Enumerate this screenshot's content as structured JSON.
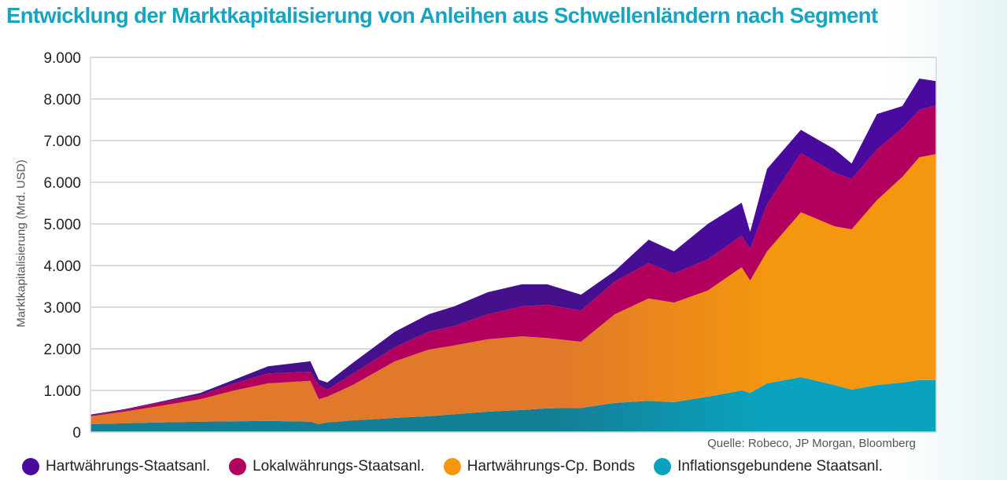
{
  "title": "Entwicklung der Marktkapitalisierung von Anleihen aus Schwellenländern nach Segment",
  "source": "Quelle: Robeco, JP Morgan, Bloomberg",
  "chart_data": {
    "type": "area",
    "stacked": true,
    "title": "Entwicklung der Marktkapitalisierung von Anleihen aus Schwellenländern nach Segment",
    "xlabel": "",
    "ylabel": "Marktkapitalisierung (Mrd. USD)",
    "ylim": [
      0,
      9000
    ],
    "yticks": [
      0,
      1000,
      2000,
      3000,
      4000,
      5000,
      6000,
      7000,
      8000,
      9000
    ],
    "ytick_labels": [
      "0",
      "1.000",
      "2.000",
      "3.000",
      "4.000",
      "5.000",
      "6.000",
      "7.000",
      "8.000",
      "9.000"
    ],
    "grid": true,
    "legend_position": "bottom",
    "x": [
      0,
      4,
      8,
      13,
      17,
      21,
      26,
      27,
      28,
      31,
      36,
      40,
      43,
      47,
      51,
      54,
      58,
      62,
      66,
      69,
      73,
      77,
      78,
      80,
      84,
      88,
      90,
      93,
      96,
      98,
      100
    ],
    "series": [
      {
        "name": "Inflationsgebundene Staatsanl.",
        "color": "#0aa3bf",
        "color2": "#137f95",
        "values": [
          190,
          210,
          230,
          250,
          260,
          270,
          250,
          190,
          230,
          280,
          340,
          380,
          430,
          490,
          530,
          570,
          580,
          700,
          750,
          720,
          850,
          1000,
          940,
          1170,
          1320,
          1130,
          1020,
          1130,
          1190,
          1250,
          1250
        ]
      },
      {
        "name": "Hartwährungs-Cp. Bonds",
        "color": "#f4960e",
        "color2": "#e2782a",
        "values": [
          190,
          280,
          390,
          540,
          740,
          900,
          980,
          600,
          620,
          850,
          1360,
          1600,
          1650,
          1740,
          1770,
          1690,
          1590,
          2130,
          2460,
          2390,
          2550,
          2960,
          2700,
          3170,
          3960,
          3810,
          3850,
          4440,
          4940,
          5350,
          5430
        ]
      },
      {
        "name": "Lokalwährungs-Staatsanl.",
        "color": "#b3005e",
        "color2": "#b3005e",
        "values": [
          20,
          40,
          80,
          100,
          170,
          240,
          220,
          340,
          170,
          270,
          340,
          430,
          470,
          600,
          720,
          800,
          750,
          790,
          850,
          700,
          750,
          760,
          760,
          1130,
          1420,
          1290,
          1210,
          1220,
          1170,
          1140,
          1170
        ]
      },
      {
        "name": "Hartwährungs-Staatsanl.",
        "color": "#4a0a9e",
        "color2": "#44108c",
        "values": [
          20,
          20,
          20,
          50,
          90,
          170,
          250,
          130,
          170,
          260,
          370,
          420,
          470,
          530,
          530,
          490,
          380,
          250,
          560,
          530,
          850,
          790,
          410,
          850,
          560,
          560,
          370,
          850,
          530,
          750,
          580
        ]
      }
    ],
    "legend": [
      "Hartwährungs-Staatsanl.",
      "Lokalwährungs-Staatsanl.",
      "Hartwährungs-Cp. Bonds",
      "Inflationsgebundene Staatsanl."
    ],
    "legend_colors": [
      "#4a0a9e",
      "#b3005e",
      "#f4960e",
      "#0aa3bf"
    ]
  }
}
